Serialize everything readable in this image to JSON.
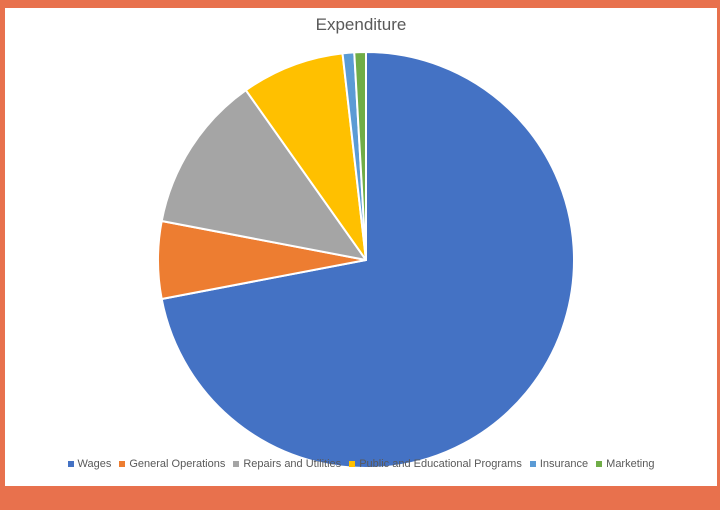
{
  "chart_data": {
    "type": "pie",
    "title": "Expenditure",
    "legend_position": "bottom",
    "start_angle_deg": 0,
    "direction": "clockwise",
    "slices": [
      {
        "label": "Wages",
        "value": 72.0,
        "color": "#4472c4"
      },
      {
        "label": "General Operations",
        "value": 6.0,
        "color": "#ed7d31"
      },
      {
        "label": "Repairs and Utilities",
        "value": 12.2,
        "color": "#a5a5a5"
      },
      {
        "label": "Public and Educational Programs",
        "value": 8.0,
        "color": "#ffc000"
      },
      {
        "label": "Insurance",
        "value": 0.9,
        "color": "#5b9bd5"
      },
      {
        "label": "Marketing",
        "value": 0.9,
        "color": "#70ad47"
      }
    ]
  }
}
